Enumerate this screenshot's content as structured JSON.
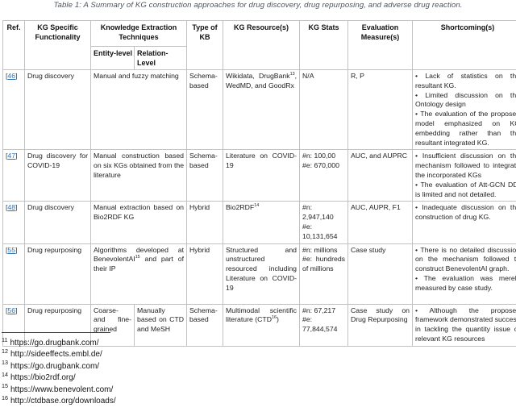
{
  "caption": "Table 1: A Summary of KG construction approaches for drug discovery, drug repurposing, and adverse drug reaction.",
  "table": {
    "headers": {
      "ref": "Ref.",
      "functionality": "KG Specific Functionality",
      "extraction": "Knowledge Extraction Techniques",
      "entity": "Entity-level",
      "relation": "Relation-Level",
      "type": "Type of KB",
      "resource": "KG Resource(s)",
      "stats": "KG Stats",
      "evaluation": "Evaluation Measure(s)",
      "shortcomings": "Shortcoming(s)"
    },
    "rows": [
      {
        "ref": {
          "open": "[",
          "num": "46",
          "close": "]"
        },
        "functionality": "Drug discovery",
        "extraction": "Manual and fuzzy matching",
        "type": "Schema-based",
        "resource": "Wikidata, DrugBank^{13}, WedMD, and GoodRx",
        "stats": [
          "N/A"
        ],
        "evaluation": "R, P",
        "shortcomings": [
          "Lack of statistics on the resultant KG.",
          "Limited discussion on the Ontology design",
          "The evaluation of the proposed model emphasized on KG embedding rather than the resultant integrated KG."
        ]
      },
      {
        "ref": {
          "open": "[",
          "num": "47",
          "close": "]"
        },
        "functionality": "Drug discovery for COVID-19",
        "extraction": "Manual construction based on six KGs obtained from the literature",
        "type": "Schema-based",
        "resource": "Literature on COVID-19",
        "stats": [
          "#n: 100,00",
          "#e: 670,000"
        ],
        "evaluation": "AUC, and AUPRC",
        "shortcomings": [
          "Insufficient discussion on the mechanism followed to integrate the incorporated KGs",
          "The evaluation of Att-GCN DDI is limited and not detailed."
        ]
      },
      {
        "ref": {
          "open": "[",
          "num": "48",
          "close": "]"
        },
        "functionality": "Drug discovery",
        "extraction": "Manual extraction based on Bio2RDF KG",
        "type": "Hybrid",
        "resource": "Bio2RDF^{14}",
        "stats": [
          "#n: 2,947,140",
          "#e: 10,131,654"
        ],
        "evaluation": "AUC, AUPR, F1",
        "shortcomings": [
          "Inadequate discussion on the construction of drug KG."
        ]
      },
      {
        "ref": {
          "open": "[",
          "num": "55",
          "close": "]"
        },
        "functionality": "Drug repurposing",
        "extraction": "Algorithms developed at BenevolentAI^{15} and part of their IP",
        "type": "Hybrid",
        "resource": "Structured and unstructured resourced including Literature on COVID-19",
        "stats": [
          "#n: millions",
          "#e: hundreds of millions"
        ],
        "evaluation": "Case study",
        "shortcomings": [
          "There is no detailed discussion on the mechanism followed to construct BenevolentAI graph.",
          "The evaluation was merely measured by case study."
        ]
      },
      {
        "ref": {
          "open": "[",
          "num": "56",
          "close": "]"
        },
        "functionality": "Drug repurposing",
        "entity": "Coarse- and fine-grained",
        "relation": "Manually based on CTD and MeSH",
        "type": "Schema-based",
        "resource": "Multimodal scientific literature (CTD^{16})",
        "stats": [
          "#n: 67,217",
          "#e: 77,844,574"
        ],
        "evaluation": "Case study on Drug Repurposing",
        "shortcomings": [
          "Although the proposed framework demonstrated success in tackling the quantity issue of relevant KG resources"
        ]
      }
    ]
  },
  "footnotes": [
    {
      "num": "11",
      "url": "https://go.drugbank.com/"
    },
    {
      "num": "12",
      "url": "http://sideeffects.embl.de/"
    },
    {
      "num": "13",
      "url": "https://go.drugbank.com/"
    },
    {
      "num": "14",
      "url": "https://bio2rdf.org/"
    },
    {
      "num": "15",
      "url": "https://www.benevolent.com/"
    },
    {
      "num": "16",
      "url": "http://ctdbase.org/downloads/"
    }
  ]
}
